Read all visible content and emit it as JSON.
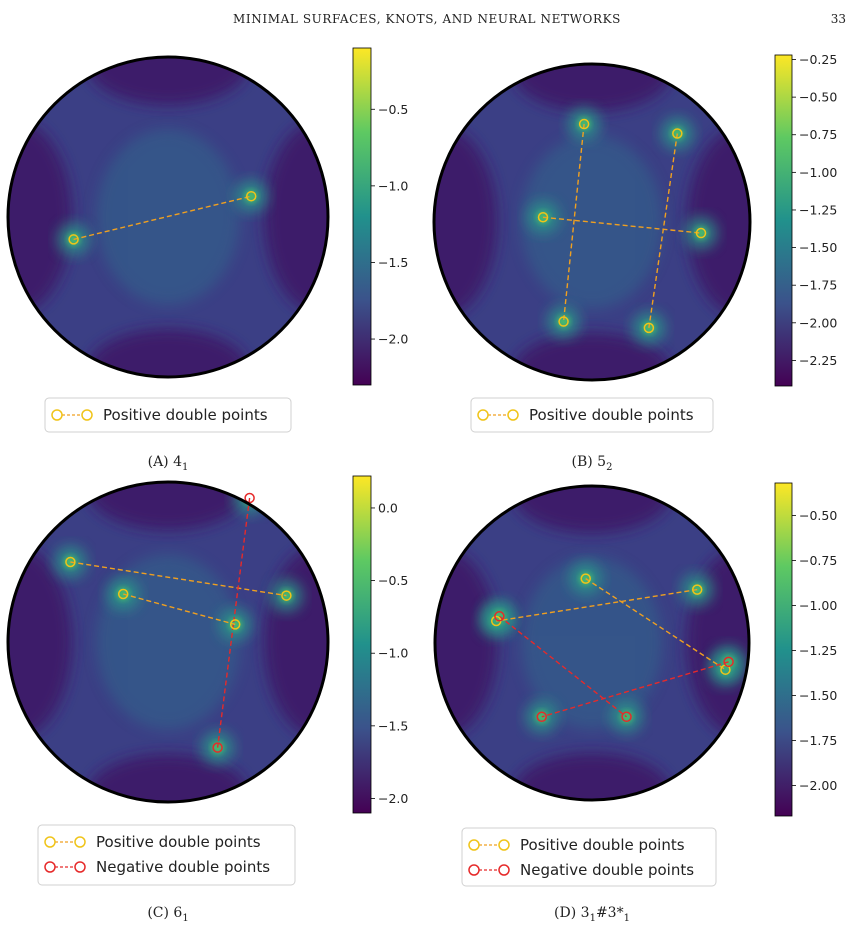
{
  "header": {
    "running_title": "MINIMAL SURFACES, KNOTS, AND NEURAL NETWORKS",
    "page_number": "33"
  },
  "legend_labels": {
    "positive": "Positive double points",
    "negative": "Negative double points"
  },
  "colors": {
    "positive": "#f0c419",
    "positive_line": "#f0a020",
    "negative": "#e62a2a",
    "viridis": [
      "#440154",
      "#3b528b",
      "#21918c",
      "#5ec962",
      "#fde725"
    ]
  },
  "chart_data": [
    {
      "type": "heatmap",
      "panel": "A",
      "caption": "(A) 4",
      "caption_sub": "1",
      "caption_sup": "",
      "colorbar": {
        "min": -2.3,
        "max": -0.1,
        "ticks": [
          -0.5,
          -1.0,
          -1.5,
          -2.0
        ],
        "tick_labels": [
          "−0.5",
          "−1.0",
          "−1.5",
          "−2.0"
        ]
      },
      "positive_points": [
        [
          -0.59,
          -0.14
        ],
        [
          0.52,
          0.13
        ]
      ],
      "positive_pairs": [
        [
          0,
          1
        ]
      ],
      "negative_points": [],
      "negative_pairs": [],
      "legend": [
        "Positive double points"
      ]
    },
    {
      "type": "heatmap",
      "panel": "B",
      "caption": "(B) 5",
      "caption_sub": "2",
      "caption_sup": "",
      "colorbar": {
        "min": -2.42,
        "max": -0.22,
        "ticks": [
          -0.25,
          -0.5,
          -0.75,
          -1.0,
          -1.25,
          -1.5,
          -1.75,
          -2.0,
          -2.25
        ],
        "tick_labels": [
          "−0.25",
          "−0.50",
          "−0.75",
          "−1.00",
          "−1.25",
          "−1.50",
          "−1.75",
          "−2.00",
          "−2.25"
        ]
      },
      "positive_points": [
        [
          -0.05,
          0.62
        ],
        [
          0.54,
          0.56
        ],
        [
          -0.31,
          0.03
        ],
        [
          0.69,
          -0.07
        ],
        [
          -0.18,
          -0.63
        ],
        [
          0.36,
          -0.67
        ]
      ],
      "positive_pairs": [
        [
          0,
          4
        ],
        [
          1,
          5
        ],
        [
          2,
          3
        ]
      ],
      "negative_points": [],
      "negative_pairs": [],
      "legend": [
        "Positive double points"
      ]
    },
    {
      "type": "heatmap",
      "panel": "C",
      "caption": "(C) 6",
      "caption_sub": "1",
      "caption_sup": "",
      "colorbar": {
        "min": -2.1,
        "max": 0.22,
        "ticks": [
          0.0,
          -0.5,
          -1.0,
          -1.5,
          -2.0
        ],
        "tick_labels": [
          "0.0",
          "−0.5",
          "−1.0",
          "−1.5",
          "−2.0"
        ]
      },
      "positive_points": [
        [
          -0.61,
          0.5
        ],
        [
          -0.28,
          0.3
        ],
        [
          0.74,
          0.29
        ],
        [
          0.42,
          0.11
        ]
      ],
      "positive_pairs": [
        [
          0,
          2
        ],
        [
          1,
          3
        ]
      ],
      "negative_points": [
        [
          0.51,
          0.9
        ],
        [
          0.31,
          -0.66
        ]
      ],
      "negative_pairs": [
        [
          0,
          1
        ]
      ],
      "legend": [
        "Positive double points",
        "Negative double points"
      ]
    },
    {
      "type": "heatmap",
      "panel": "D",
      "caption": "(D) 3",
      "caption_sub": "1",
      "caption_sup": "#3*",
      "caption_sup_sub": "1",
      "colorbar": {
        "min": -2.17,
        "max": -0.32,
        "ticks": [
          -0.5,
          -0.75,
          -1.0,
          -1.25,
          -1.5,
          -1.75,
          -2.0
        ],
        "tick_labels": [
          "−0.50",
          "−0.75",
          "−1.00",
          "−1.25",
          "−1.50",
          "−1.75",
          "−2.00"
        ]
      },
      "positive_points": [
        [
          -0.04,
          0.41
        ],
        [
          0.67,
          0.34
        ],
        [
          -0.61,
          0.14
        ],
        [
          0.85,
          -0.17
        ]
      ],
      "positive_pairs": [
        [
          0,
          3
        ],
        [
          1,
          2
        ]
      ],
      "negative_points": [
        [
          -0.59,
          0.17
        ],
        [
          0.87,
          -0.12
        ],
        [
          -0.32,
          -0.47
        ],
        [
          0.22,
          -0.47
        ]
      ],
      "negative_pairs": [
        [
          0,
          3
        ],
        [
          1,
          2
        ]
      ],
      "legend": [
        "Positive double points",
        "Negative double points"
      ]
    }
  ]
}
